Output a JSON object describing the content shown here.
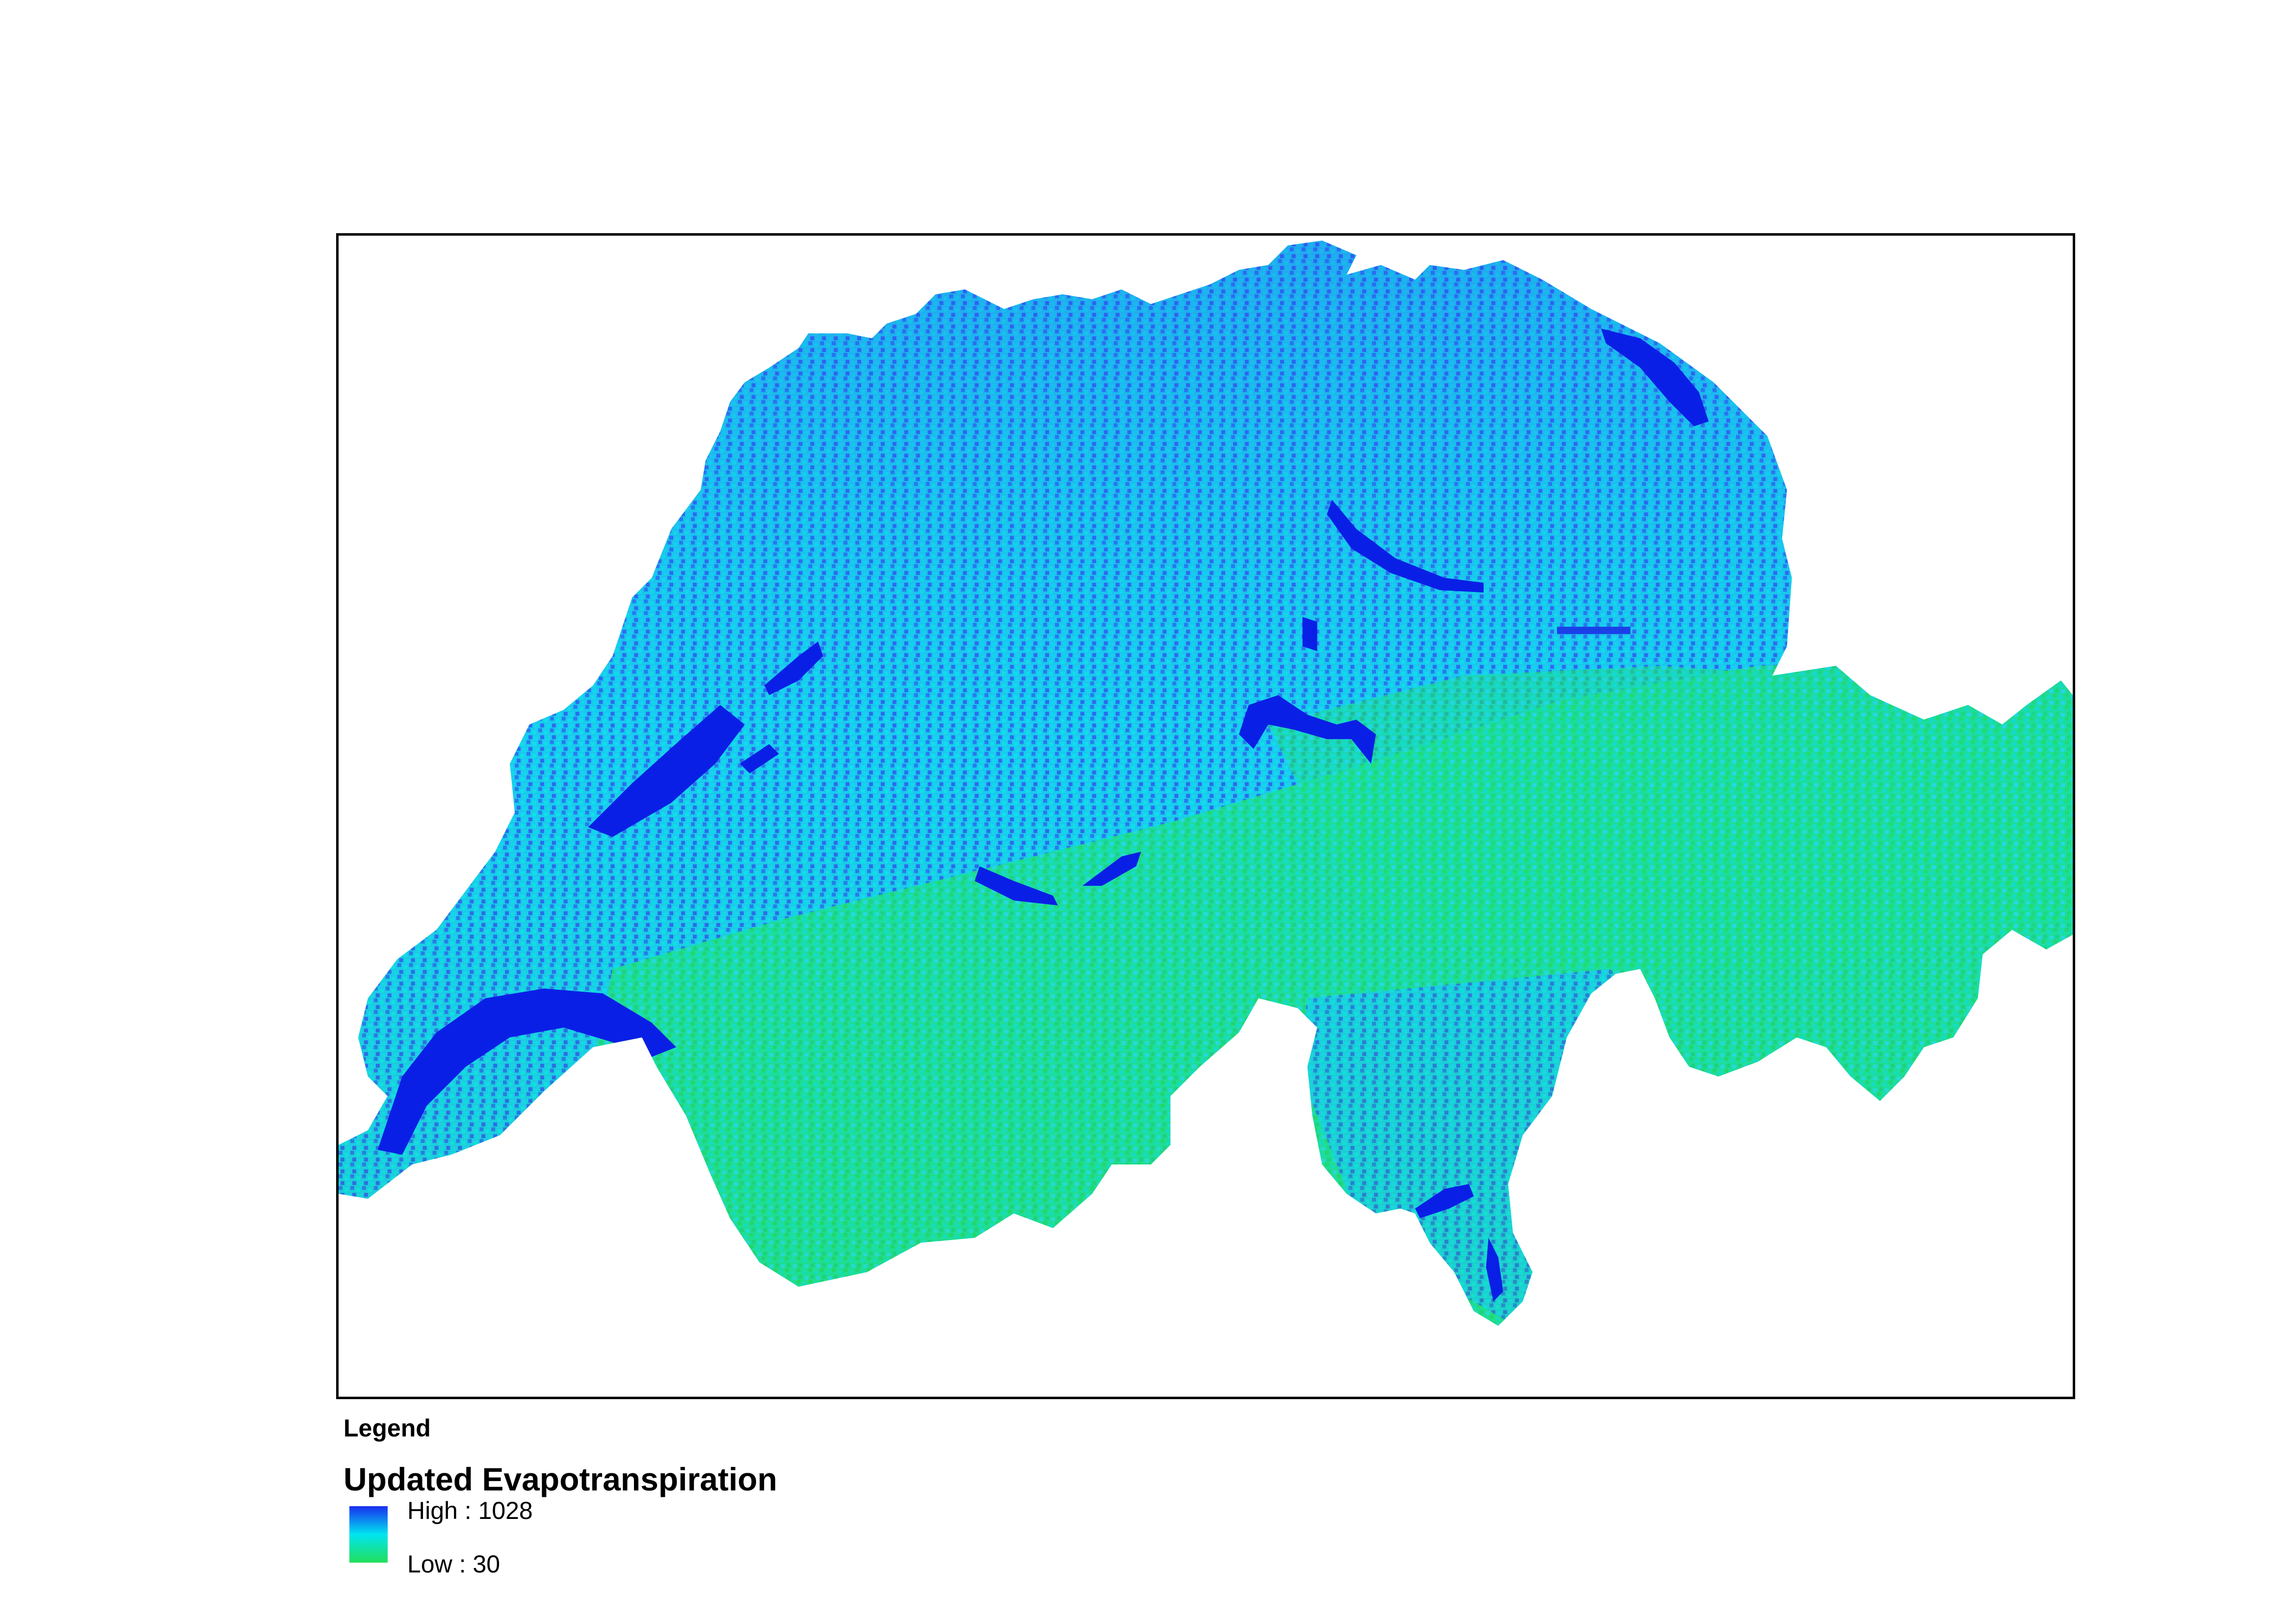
{
  "legend": {
    "heading": "Legend",
    "layer_title": "Updated Evapotranspiration",
    "high_label": "High : 1028",
    "low_label": "Low : 30",
    "high_value": 1028,
    "low_value": 30,
    "ramp_colors": [
      "#1a2ef0",
      "#00e5f0",
      "#22e05a"
    ]
  },
  "map": {
    "region": "Switzerland",
    "colors": {
      "lake": "#0a1fe6",
      "high": "#2a52f0",
      "mid_high": "#1ea0f0",
      "mid": "#10dcea",
      "mid_low": "#1de0b0",
      "low": "#22e05a"
    }
  }
}
